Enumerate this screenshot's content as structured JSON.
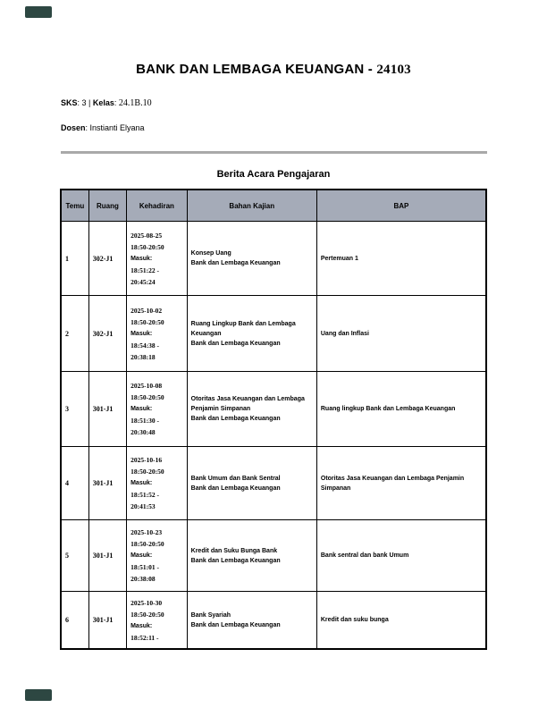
{
  "page": {
    "title_text": "BANK DAN LEMBAGA KEUANGAN -",
    "title_code": "24103",
    "sks_label": "SKS",
    "sks_rest": ": 3 | ",
    "kelas_label": "Kelas",
    "kelas_colon": ": ",
    "kelas_value": "24.1B.10",
    "dosen_label": "Dosen",
    "dosen_value": ": Instianti Elyana",
    "table_title": "Berita Acara Pengajaran"
  },
  "colors": {
    "header_bg": "#a5abb8",
    "rule_gray": "#a9a9a9",
    "corner_mark": "#2d4742"
  },
  "table": {
    "headers": [
      "Temu",
      "Ruang",
      "Kehadiran",
      "Bahan Kajian",
      "BAP"
    ],
    "rows": [
      {
        "temu": "1",
        "ruang": "302-J1",
        "kehadiran": [
          "2025-08-25",
          "18:50-20:50",
          "Masuk:",
          "18:51:22 -",
          "20:45:24"
        ],
        "bahan_topic": "Konsep Uang",
        "bahan_course": "Bank dan Lembaga Keuangan",
        "bap": "Pertemuan 1"
      },
      {
        "temu": "2",
        "ruang": "302-J1",
        "kehadiran": [
          "2025-10-02",
          "18:50-20:50",
          "Masuk:",
          "18:54:38 -",
          "20:38:18"
        ],
        "bahan_topic": "Ruang Lingkup Bank dan Lembaga Keuangan",
        "bahan_course": "Bank dan Lembaga Keuangan",
        "bap": "Uang dan Inflasi"
      },
      {
        "temu": "3",
        "ruang": "301-J1",
        "kehadiran": [
          "2025-10-08",
          "18:50-20:50",
          "Masuk:",
          "18:51:30 -",
          "20:30:48"
        ],
        "bahan_topic": "Otoritas Jasa Keuangan dan Lembaga Penjamin Simpanan",
        "bahan_course": "Bank dan Lembaga Keuangan",
        "bap": "Ruang lingkup Bank dan Lembaga Keuangan"
      },
      {
        "temu": "4",
        "ruang": "301-J1",
        "kehadiran": [
          "2025-10-16",
          "18:50-20:50",
          "Masuk:",
          "18:51:52 -",
          "20:41:53"
        ],
        "bahan_topic": "Bank Umum dan Bank Sentral",
        "bahan_course": "Bank dan Lembaga Keuangan",
        "bap": "Otoritas Jasa Keuangan dan Lembaga Penjamin Simpanan"
      },
      {
        "temu": "5",
        "ruang": "301-J1",
        "kehadiran": [
          "2025-10-23",
          "18:50-20:50",
          "Masuk:",
          "18:51:01 -",
          "20:38:08"
        ],
        "bahan_topic": "Kredit dan Suku Bunga Bank",
        "bahan_course": "Bank dan Lembaga Keuangan",
        "bap": "Bank sentral dan bank Umum"
      },
      {
        "temu": "6",
        "ruang": "301-J1",
        "kehadiran": [
          "2025-10-30",
          "18:50-20:50",
          "Masuk:",
          "18:52:11 -"
        ],
        "bahan_topic": "Bank Syariah",
        "bahan_course": "Bank dan Lembaga Keuangan",
        "bap": "Kredit dan suku bunga"
      }
    ]
  }
}
